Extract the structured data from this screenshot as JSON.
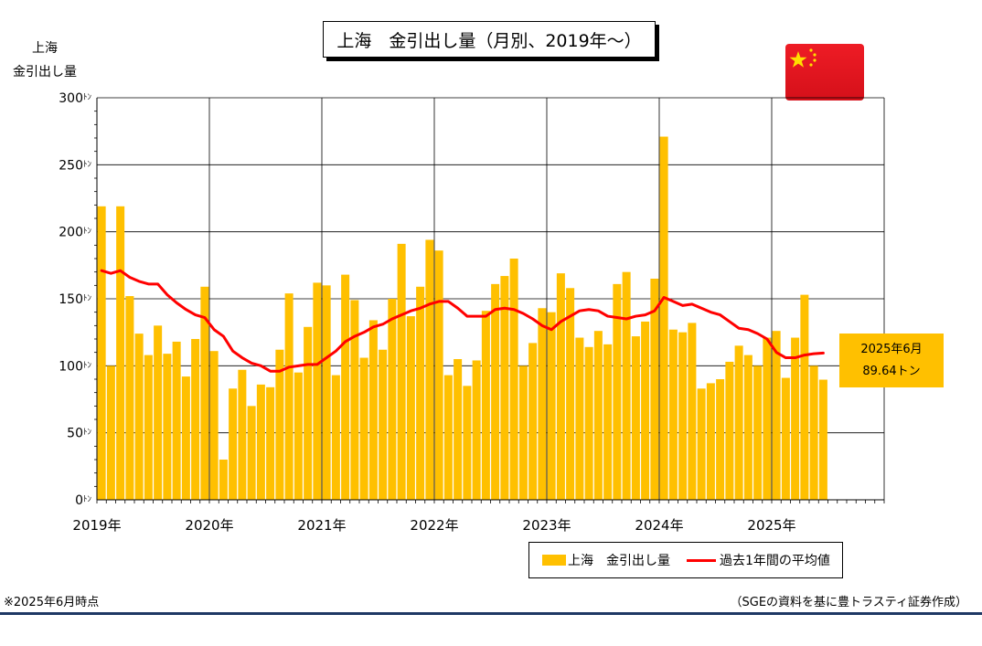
{
  "title": "上海　金引出し量（月別、2019年〜）",
  "y_axis_label": [
    "上海",
    "金引出し量"
  ],
  "callout": {
    "line1": "2025年6月",
    "line2": "89.64トン"
  },
  "legend": {
    "bar_label": "上海　金引出し量",
    "line_label": "過去1年間の平均値"
  },
  "footnote": "※2025年6月時点",
  "source": "（SGEの資料を基に豊トラスティ証券作成）",
  "colors": {
    "bar": "#FFC000",
    "line": "#FF0000",
    "flag": "#EE1C25",
    "star": "#FFDE00",
    "rule": "#1F3864"
  },
  "chart_data": {
    "type": "bar",
    "ylim": [
      0,
      300
    ],
    "y_ticks": [
      0,
      50,
      100,
      150,
      200,
      250,
      300
    ],
    "y_tick_unit": "ﾄﾝ",
    "x_tick_labels": [
      "2019年",
      "2020年",
      "2021年",
      "2022年",
      "2023年",
      "2024年",
      "2025年"
    ],
    "grid": true,
    "series": [
      {
        "name": "上海　金引出し量",
        "type": "bar",
        "values": [
          219,
          100,
          219,
          152,
          124,
          108,
          130,
          109,
          118,
          92,
          120,
          159,
          111,
          30,
          83,
          97,
          70,
          86,
          84,
          112,
          154,
          95,
          129,
          162,
          160,
          93,
          168,
          149,
          106,
          134,
          112,
          150,
          191,
          137,
          159,
          194,
          186,
          93,
          105,
          85,
          104,
          141,
          161,
          167,
          180,
          100,
          117,
          143,
          140,
          169,
          158,
          121,
          114,
          126,
          116,
          161,
          170,
          122,
          133,
          165,
          271,
          127,
          125,
          132,
          83,
          87,
          90,
          103,
          115,
          108,
          100,
          121,
          126,
          91,
          121,
          153,
          100,
          89.64
        ]
      },
      {
        "name": "過去1年間の平均値",
        "type": "line",
        "values": [
          171,
          169,
          171,
          166,
          163,
          161,
          161,
          153,
          147,
          142,
          138,
          136,
          127,
          122,
          111,
          106,
          102,
          100,
          96,
          96,
          99,
          100,
          101,
          101,
          106,
          111,
          118,
          122,
          125,
          129,
          131,
          135,
          138,
          141,
          143,
          146,
          148,
          148,
          143,
          137,
          137,
          137,
          142,
          143,
          142,
          139,
          135,
          130,
          127,
          133,
          137,
          141,
          142,
          141,
          137,
          136,
          135,
          137,
          138,
          141,
          151,
          148,
          145,
          146,
          143,
          140,
          138,
          133,
          128,
          127,
          124,
          120,
          110,
          106,
          106,
          108,
          109,
          109.5
        ]
      }
    ]
  }
}
